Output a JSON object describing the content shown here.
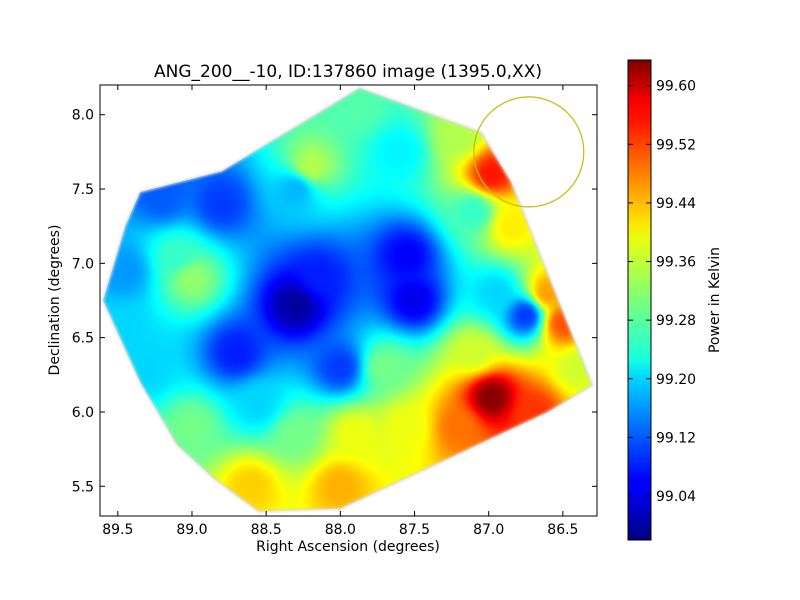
{
  "chart_data": {
    "type": "heatmap",
    "title": "ANG_200__-10, ID:137860 image (1395.0,XX)",
    "xlabel": "Right Ascension (degrees)",
    "ylabel": "Declination (degrees)",
    "xlim": [
      89.62,
      86.27
    ],
    "ylim": [
      5.3,
      8.2
    ],
    "x_reversed": true,
    "x_ticks": [
      89.5,
      89.0,
      88.5,
      88.0,
      87.5,
      87.0,
      86.5
    ],
    "x_tick_labels": [
      "89.5",
      "89.0",
      "88.5",
      "88.0",
      "87.5",
      "87.0",
      "86.5"
    ],
    "y_ticks": [
      5.5,
      6.0,
      6.5,
      7.0,
      7.5,
      8.0
    ],
    "y_tick_labels": [
      "5.5",
      "6.0",
      "6.5",
      "7.0",
      "7.5",
      "8.0"
    ],
    "colorbar": {
      "label": "Power in Kelvin",
      "vmin": 98.98,
      "vmax": 99.635,
      "ticks": [
        99.04,
        99.12,
        99.2,
        99.28,
        99.36,
        99.44,
        99.52,
        99.6
      ],
      "tick_labels": [
        "99.04",
        "99.12",
        "99.20",
        "99.28",
        "99.36",
        "99.44",
        "99.52",
        "99.60"
      ],
      "colormap": "jet"
    },
    "footprint": [
      [
        87.87,
        8.18
      ],
      [
        87.05,
        7.88
      ],
      [
        86.85,
        7.55
      ],
      [
        86.55,
        6.8
      ],
      [
        86.3,
        6.18
      ],
      [
        86.6,
        6.0
      ],
      [
        87.35,
        5.65
      ],
      [
        88.0,
        5.35
      ],
      [
        88.55,
        5.33
      ],
      [
        88.85,
        5.55
      ],
      [
        89.1,
        5.78
      ],
      [
        89.35,
        6.2
      ],
      [
        89.6,
        6.75
      ],
      [
        89.45,
        7.25
      ],
      [
        89.35,
        7.48
      ],
      [
        88.8,
        7.62
      ],
      [
        88.25,
        7.95
      ]
    ],
    "background_value": 99.3,
    "samples": [
      {
        "ra": 88.3,
        "dec": 6.72,
        "value": 99.0
      },
      {
        "ra": 88.7,
        "dec": 6.4,
        "value": 99.08
      },
      {
        "ra": 87.5,
        "dec": 6.75,
        "value": 99.05
      },
      {
        "ra": 87.55,
        "dec": 7.05,
        "value": 99.06
      },
      {
        "ra": 88.15,
        "dec": 6.9,
        "value": 99.08
      },
      {
        "ra": 88.0,
        "dec": 6.3,
        "value": 99.1
      },
      {
        "ra": 88.8,
        "dec": 7.4,
        "value": 99.1
      },
      {
        "ra": 89.2,
        "dec": 7.45,
        "value": 99.12
      },
      {
        "ra": 89.45,
        "dec": 6.95,
        "value": 99.16
      },
      {
        "ra": 89.5,
        "dec": 6.55,
        "value": 99.2
      },
      {
        "ra": 89.0,
        "dec": 6.9,
        "value": 99.32
      },
      {
        "ra": 89.1,
        "dec": 7.05,
        "value": 99.26
      },
      {
        "ra": 88.55,
        "dec": 6.05,
        "value": 99.2
      },
      {
        "ra": 88.3,
        "dec": 7.5,
        "value": 99.18
      },
      {
        "ra": 88.2,
        "dec": 7.65,
        "value": 99.34
      },
      {
        "ra": 87.9,
        "dec": 8.05,
        "value": 99.28
      },
      {
        "ra": 87.6,
        "dec": 7.75,
        "value": 99.22
      },
      {
        "ra": 87.2,
        "dec": 7.85,
        "value": 99.34
      },
      {
        "ra": 87.1,
        "dec": 7.35,
        "value": 99.26
      },
      {
        "ra": 86.75,
        "dec": 6.65,
        "value": 99.1
      },
      {
        "ra": 86.95,
        "dec": 6.8,
        "value": 99.2
      },
      {
        "ra": 86.98,
        "dec": 7.6,
        "value": 99.54
      },
      {
        "ra": 86.85,
        "dec": 7.25,
        "value": 99.4
      },
      {
        "ra": 86.6,
        "dec": 6.8,
        "value": 99.45
      },
      {
        "ra": 86.5,
        "dec": 6.6,
        "value": 99.5
      },
      {
        "ra": 86.4,
        "dec": 6.3,
        "value": 99.36
      },
      {
        "ra": 86.98,
        "dec": 6.1,
        "value": 99.63
      },
      {
        "ra": 87.2,
        "dec": 5.9,
        "value": 99.48
      },
      {
        "ra": 86.7,
        "dec": 6.0,
        "value": 99.52
      },
      {
        "ra": 87.55,
        "dec": 5.9,
        "value": 99.38
      },
      {
        "ra": 87.7,
        "dec": 6.3,
        "value": 99.3
      },
      {
        "ra": 88.3,
        "dec": 5.85,
        "value": 99.3
      },
      {
        "ra": 88.6,
        "dec": 5.5,
        "value": 99.42
      },
      {
        "ra": 88.0,
        "dec": 5.5,
        "value": 99.44
      },
      {
        "ra": 87.9,
        "dec": 5.85,
        "value": 99.38
      },
      {
        "ra": 89.0,
        "dec": 5.9,
        "value": 99.3
      },
      {
        "ra": 89.3,
        "dec": 6.3,
        "value": 99.2
      },
      {
        "ra": 87.1,
        "dec": 6.4,
        "value": 99.36
      }
    ],
    "circle": {
      "ra": 86.73,
      "dec": 7.75,
      "radius_deg": 0.37,
      "color": "#bfbf00"
    }
  }
}
